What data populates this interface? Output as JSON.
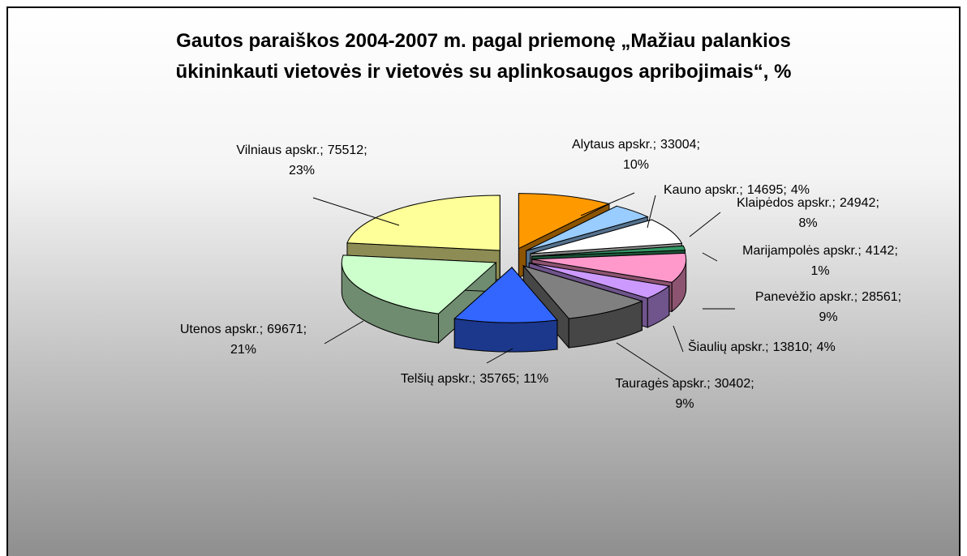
{
  "chart_data": {
    "type": "pie",
    "title": [
      "Gautos paraiškos 2004-2007 m. pagal priemonę „Mažiau palankios",
      "ūkininkauti vietovės ir vietovės su aplinkosaugos apribojimais“, %"
    ],
    "categories": [
      "Alytaus apskr.",
      "Kauno apskr.",
      "Klaipėdos apskr.",
      "Marijampolės apskr.",
      "Panevėžio apskr.",
      "Šiaulių apskr.",
      "Tauragės apskr.",
      "Telšių apskr.",
      "Utenos apskr.",
      "Vilniaus apskr."
    ],
    "values": [
      33004,
      14695,
      24942,
      4142,
      28561,
      13810,
      30402,
      35765,
      69671,
      75512
    ],
    "percent_labels": [
      "10%",
      "4%",
      "8%",
      "1%",
      "9%",
      "4%",
      "9%",
      "11%",
      "21%",
      "23%"
    ],
    "label_separator": ";",
    "colors": [
      "#ff9900",
      "#99ccff",
      "#ffffff",
      "#339966",
      "#ff99cc",
      "#cc99ff",
      "#808080",
      "#3366ff",
      "#ccffcc",
      "#ffff99"
    ]
  }
}
